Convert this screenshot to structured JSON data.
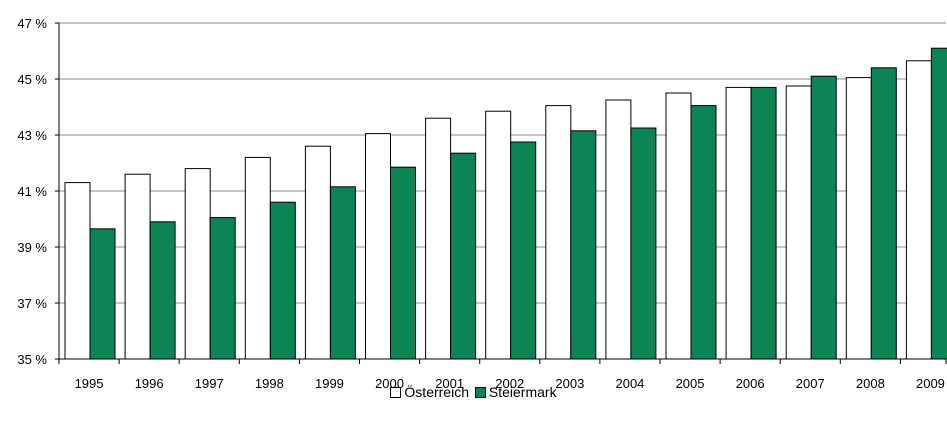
{
  "chart_data": {
    "type": "bar",
    "categories": [
      "1995",
      "1996",
      "1997",
      "1998",
      "1999",
      "2000",
      "2001",
      "2002",
      "2003",
      "2004",
      "2005",
      "2006",
      "2007",
      "2008",
      "2009"
    ],
    "series": [
      {
        "name": "Österreich",
        "color": "#ffffff",
        "values": [
          41.3,
          41.6,
          41.8,
          42.2,
          42.6,
          43.05,
          43.6,
          43.85,
          44.05,
          44.25,
          44.5,
          44.7,
          44.75,
          45.05,
          45.65
        ]
      },
      {
        "name": "Steiermark",
        "color": "#0c8455",
        "values": [
          39.65,
          39.9,
          40.05,
          40.6,
          41.15,
          41.85,
          42.35,
          42.75,
          43.15,
          43.25,
          44.05,
          44.7,
          45.1,
          45.4,
          46.1
        ]
      }
    ],
    "yticks": [
      "35 %",
      "37 %",
      "39 %",
      "41 %",
      "43 %",
      "45 %",
      "47 %"
    ],
    "ylim": [
      35,
      47
    ],
    "grid": true,
    "legend_position": "bottom-center"
  }
}
